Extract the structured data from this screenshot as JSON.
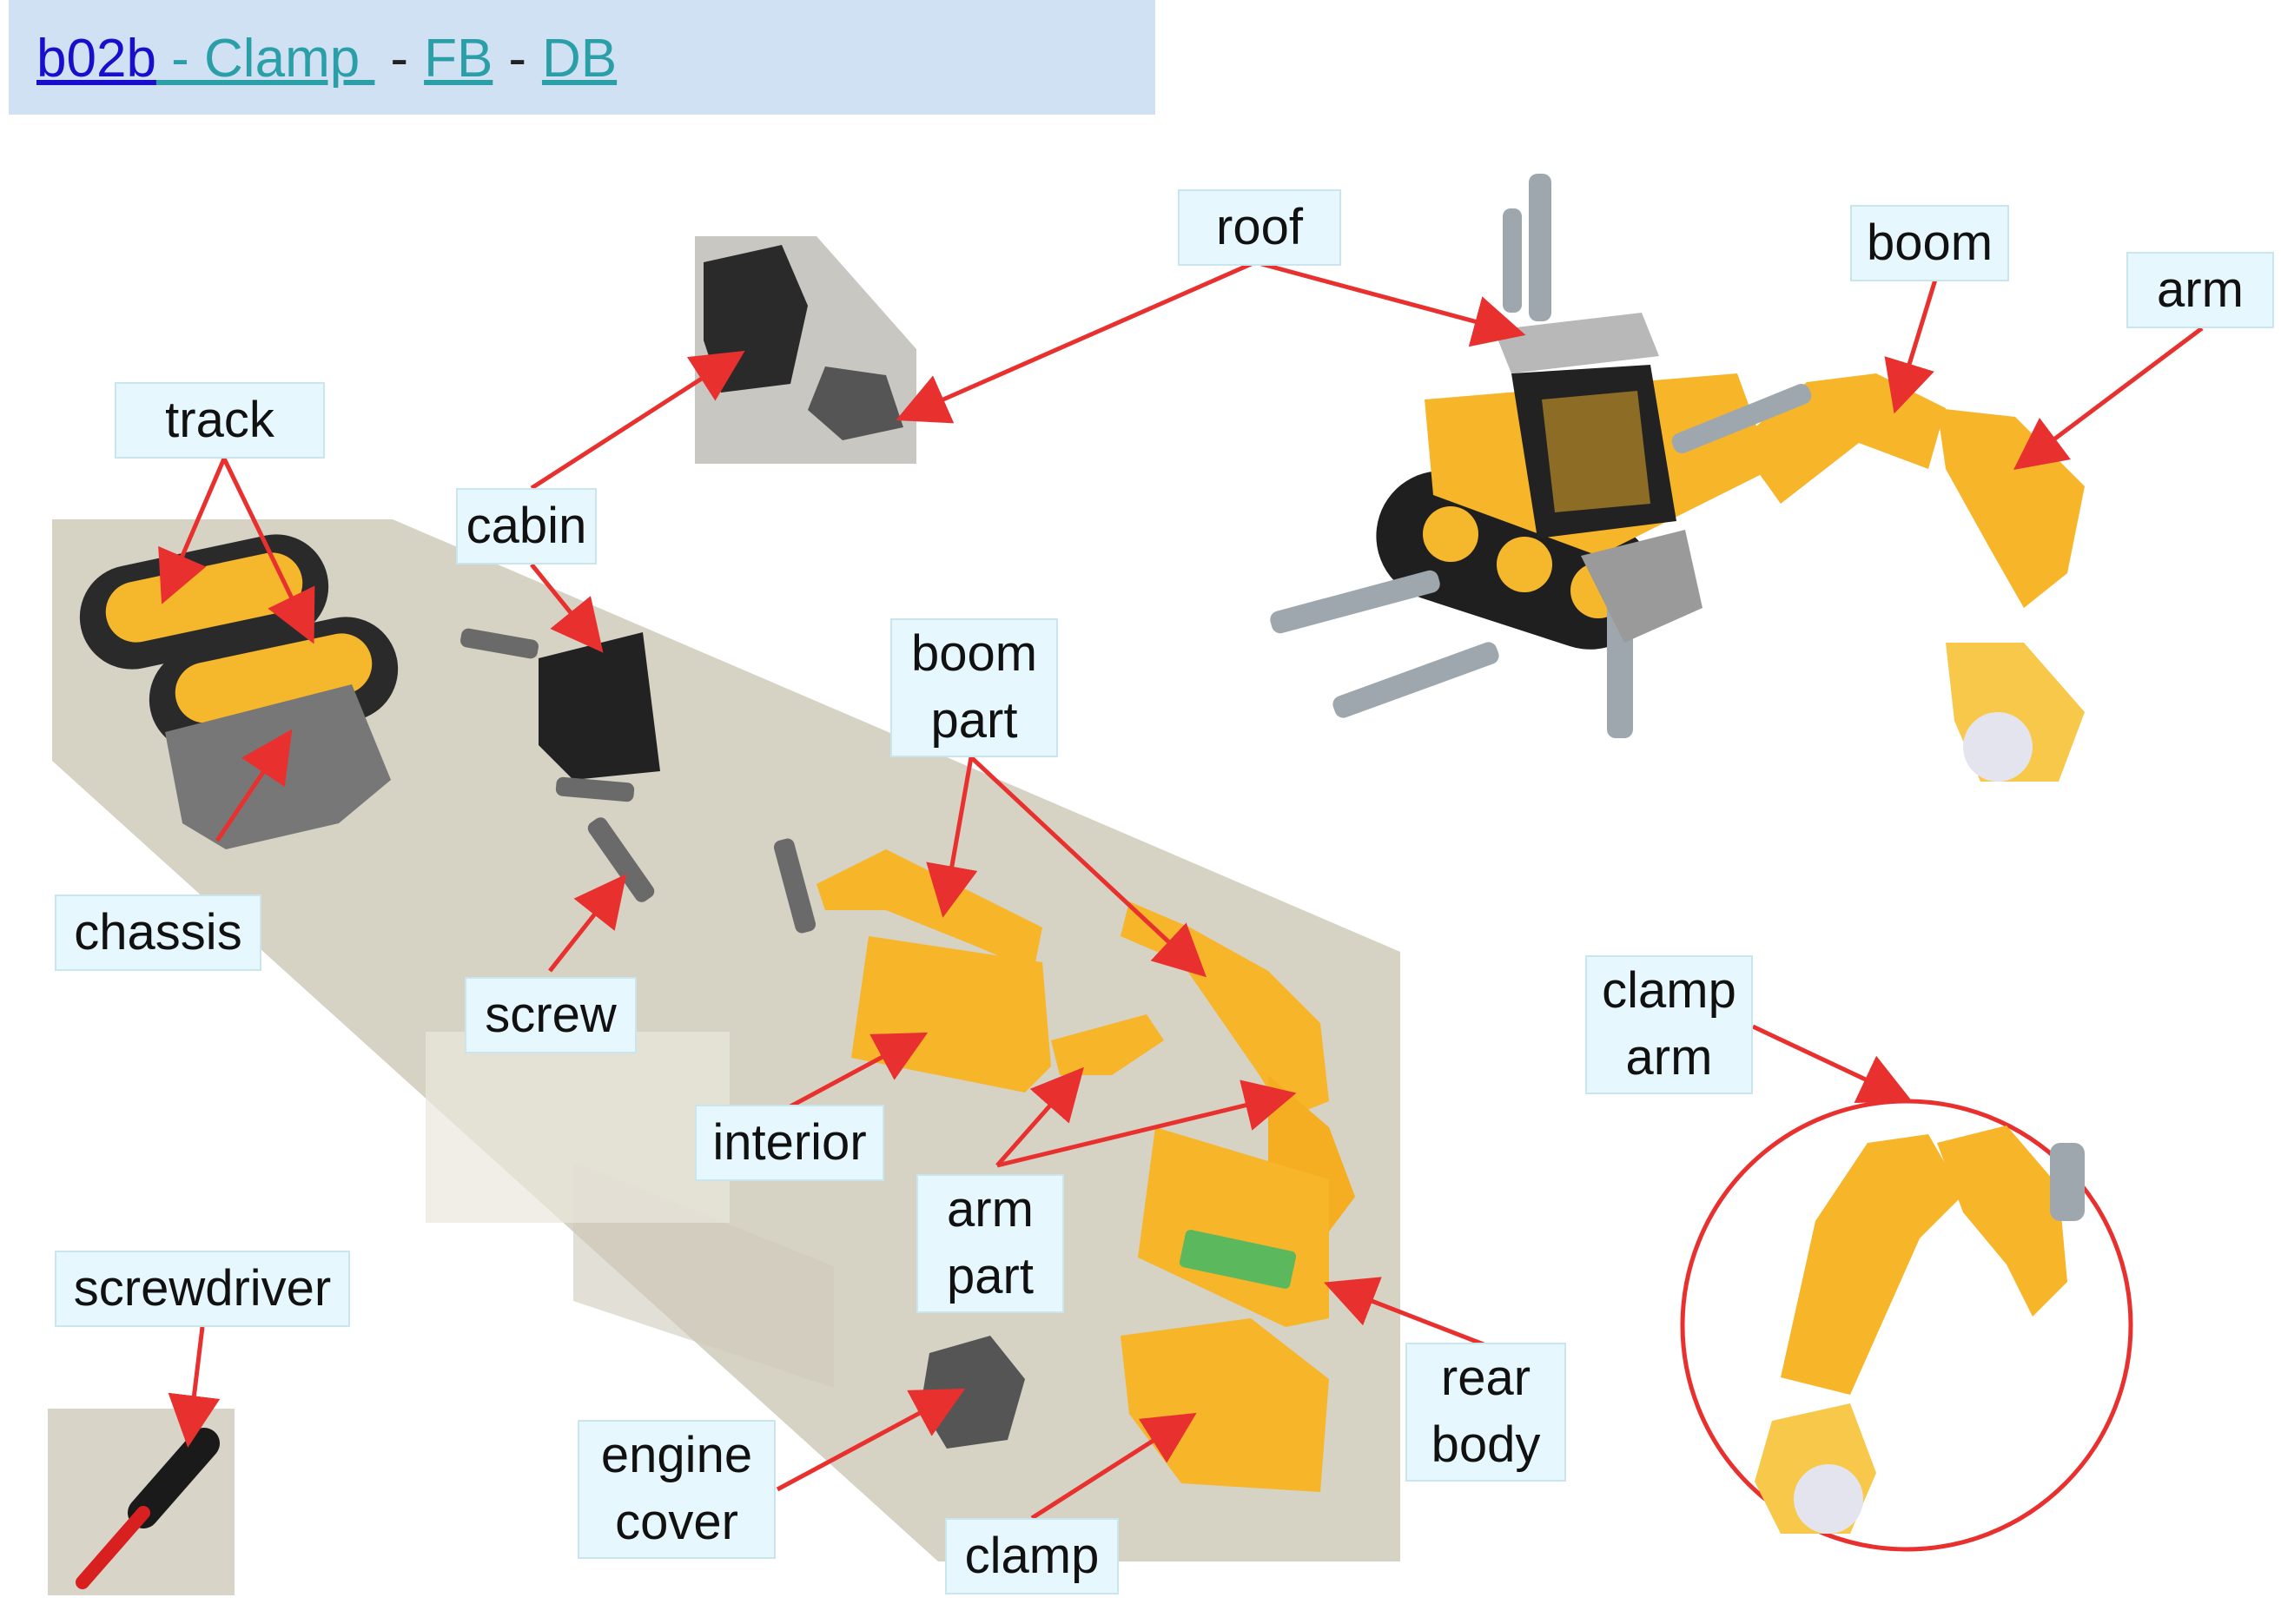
{
  "header": {
    "code_link": "b02b",
    "title_link": " - Clamp ",
    "sep1": "-",
    "fb_link": "FB",
    "sep2": "-",
    "db_link": "DB"
  },
  "labels": {
    "roof": "roof",
    "boom": "boom",
    "arm": "arm",
    "track": "track",
    "cabin": "cabin",
    "boom_part_1": "boom",
    "boom_part_2": "part",
    "chassis": "chassis",
    "screw": "screw",
    "interior": "interior",
    "clamp_arm_1": "clamp",
    "clamp_arm_2": "arm",
    "arm_part_1": "arm",
    "arm_part_2": "part",
    "screwdriver": "screwdriver",
    "rear_body_1": "rear",
    "rear_body_2": "body",
    "engine_cover_1": "engine",
    "engine_cover_2": "cover",
    "clamp": "clamp"
  },
  "colors": {
    "arrow": "#e8302f",
    "header_bg": "#cfe1f2",
    "label_bg": "#e6f7fd",
    "part_yellow": "#f7b52a",
    "part_gray": "#6d6d6d",
    "part_black": "#222222"
  }
}
